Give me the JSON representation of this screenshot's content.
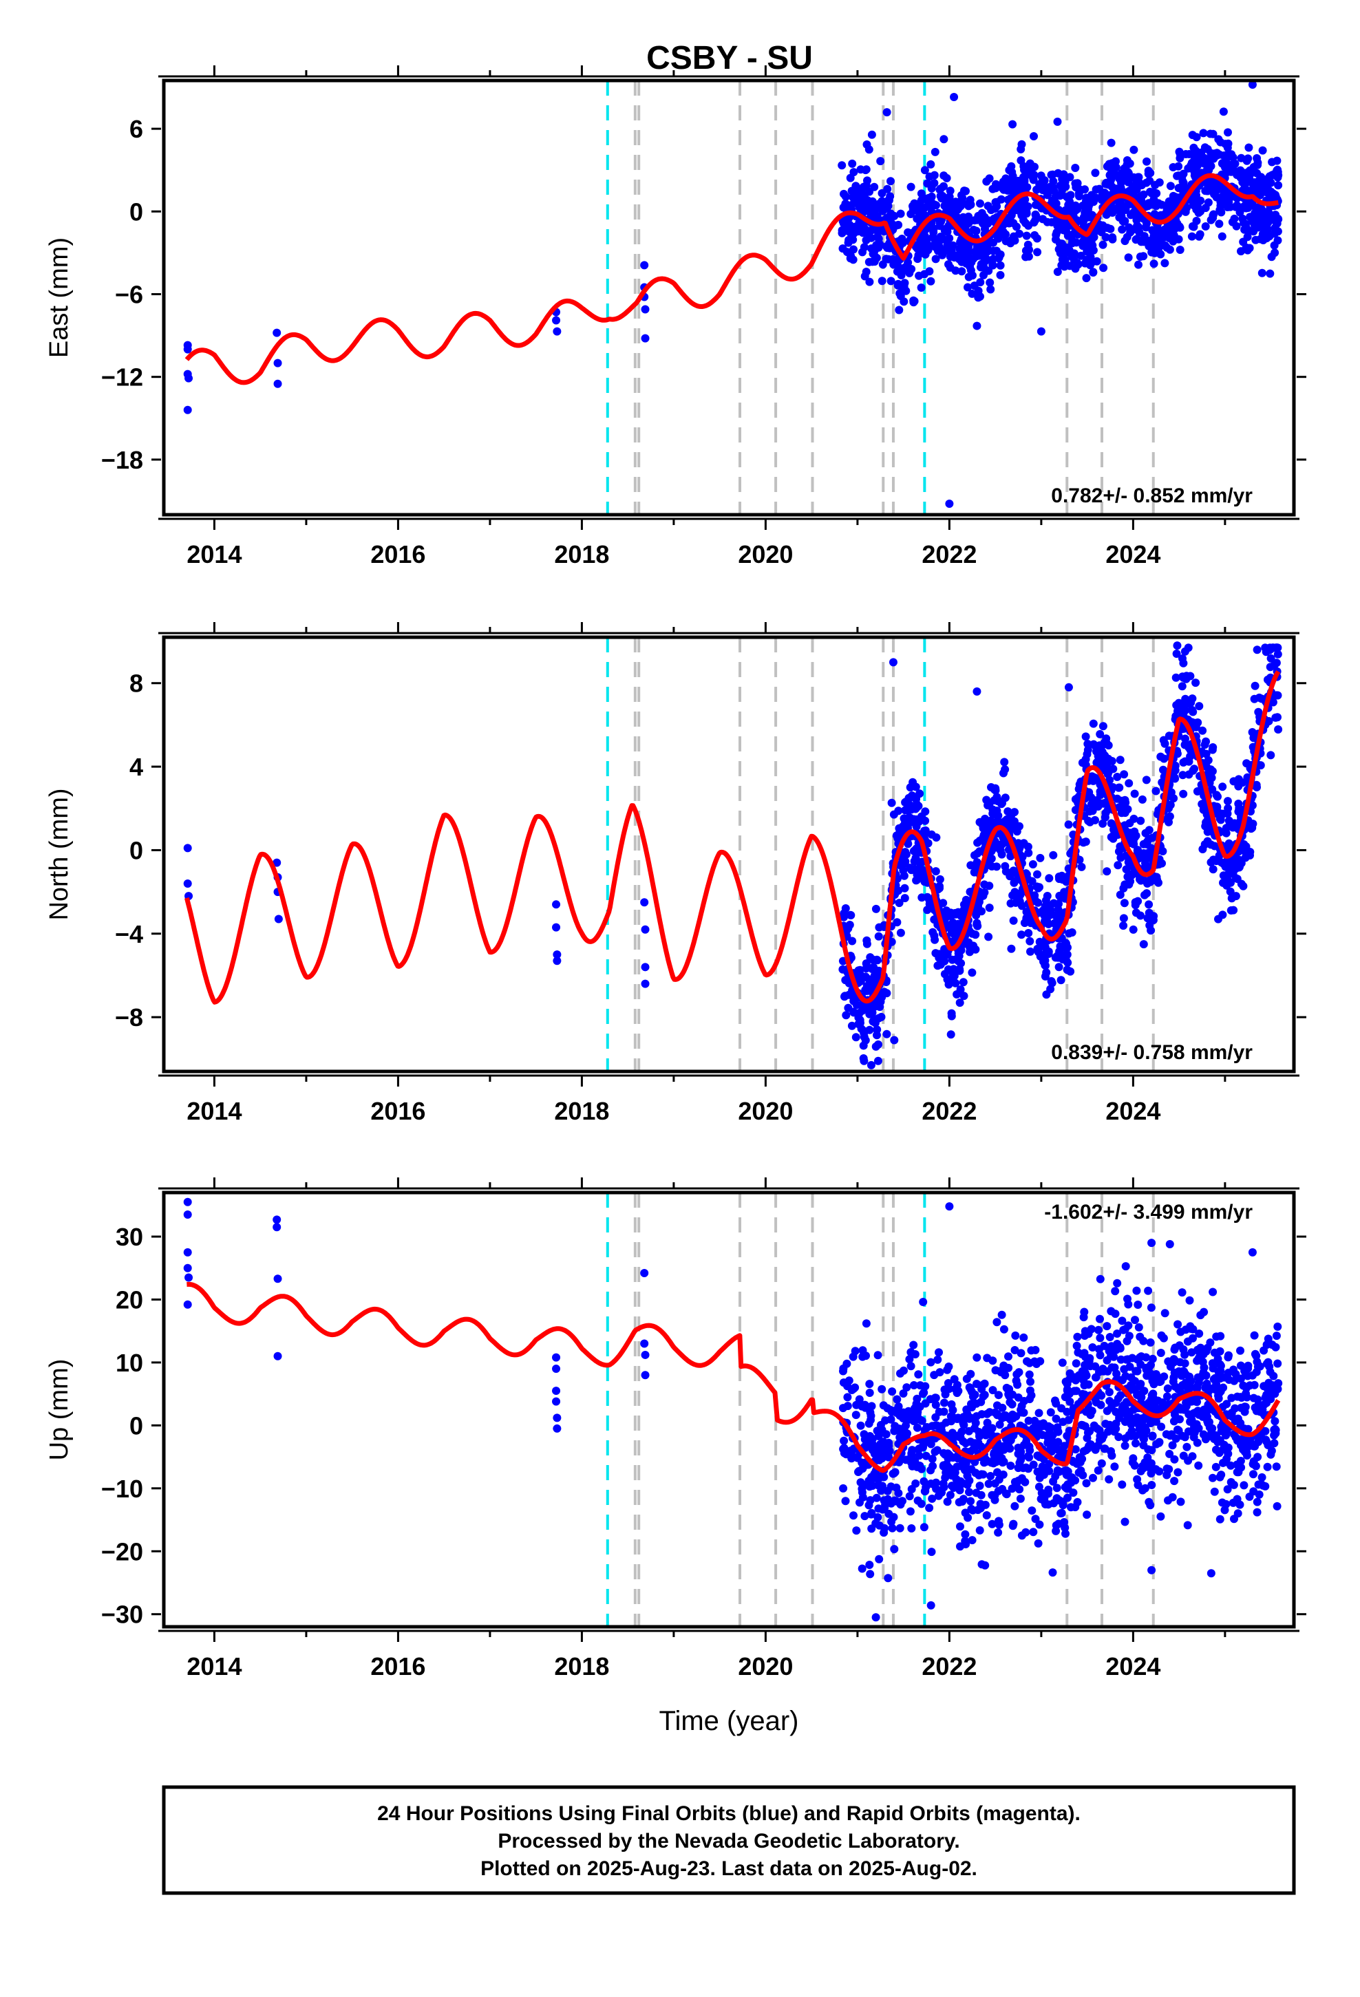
{
  "title": "CSBY - SU",
  "footer": {
    "line1": "24 Hour Positions Using Final Orbits (blue) and Rapid Orbits (magenta).",
    "line2": "Processed by the Nevada Geodetic Laboratory.",
    "line3": "Plotted on 2025-Aug-23. Last data on 2025-Aug-02."
  },
  "colors": {
    "data": "#0000ff",
    "model": "#ff0000",
    "event_cyan": "#00e5ee",
    "event_gray": "#c0c0c0"
  },
  "chart_data": [
    {
      "type": "scatter",
      "ylabel": "East (mm)",
      "xlabel": "",
      "xlim": [
        2013.45,
        2025.75
      ],
      "ylim": [
        -22,
        9.5
      ],
      "yticks": [
        6,
        0,
        -6,
        -12,
        -18
      ],
      "xticks": [
        2014,
        2016,
        2018,
        2020,
        2022,
        2024
      ],
      "rate_label": "0.782+/- 0.852 mm/yr",
      "rate_position": "bottom-right",
      "events_cyan": [
        2018.28,
        2021.73
      ],
      "events_gray": [
        2018.58,
        2018.62,
        2019.72,
        2020.11,
        2020.51,
        2021.28,
        2021.39,
        2023.28,
        2023.66,
        2024.22
      ],
      "early_points": [
        {
          "x": 2013.71,
          "y": -9.7
        },
        {
          "x": 2013.71,
          "y": -10.0
        },
        {
          "x": 2013.71,
          "y": -11.8
        },
        {
          "x": 2013.72,
          "y": -12.1
        },
        {
          "x": 2013.71,
          "y": -14.4
        },
        {
          "x": 2014.68,
          "y": -8.8
        },
        {
          "x": 2014.69,
          "y": -11.0
        },
        {
          "x": 2014.69,
          "y": -12.5
        },
        {
          "x": 2017.72,
          "y": -7.3
        },
        {
          "x": 2017.72,
          "y": -7.9
        },
        {
          "x": 2017.73,
          "y": -8.7
        },
        {
          "x": 2018.68,
          "y": -3.9
        },
        {
          "x": 2018.68,
          "y": -5.5
        },
        {
          "x": 2018.68,
          "y": -6.2
        },
        {
          "x": 2018.69,
          "y": -7.1
        },
        {
          "x": 2018.69,
          "y": -9.2
        }
      ],
      "dense": {
        "x_start": 2020.83,
        "x_end": 2025.58,
        "count": 1500,
        "seed": 11,
        "scatter_sd": 1.8,
        "outliers": [
          {
            "x": 2022.0,
            "y": -21.2
          },
          {
            "x": 2023.0,
            "y": -8.7
          },
          {
            "x": 2022.3,
            "y": -8.3
          },
          {
            "x": 2021.32,
            "y": 7.2
          },
          {
            "x": 2025.3,
            "y": 9.2
          },
          {
            "x": 2022.05,
            "y": 8.3
          }
        ]
      },
      "model": {
        "break_years": [
          2018.28,
          2018.58,
          2019.72,
          2020.11,
          2020.51,
          2021.28,
          2021.39,
          2023.28
        ],
        "break_offsets": [
          0.8,
          -0.6,
          0.9,
          0.6,
          -0.9,
          -0.6,
          -1.1,
          -1.2
        ],
        "curve": [
          [
            2013.7,
            -11.8
          ],
          [
            2014.0,
            -10.8
          ],
          [
            2014.5,
            -11.3
          ],
          [
            2015.0,
            -9.7
          ],
          [
            2015.5,
            -9.4
          ],
          [
            2016.0,
            -9.0
          ],
          [
            2016.5,
            -9.4
          ],
          [
            2017.0,
            -8.3
          ],
          [
            2017.5,
            -8.5
          ],
          [
            2018.0,
            -7.4
          ],
          [
            2018.3,
            -6.5
          ],
          [
            2018.6,
            -7.0
          ],
          [
            2019.0,
            -5.6
          ],
          [
            2019.5,
            -5.6
          ],
          [
            2020.0,
            -3.9
          ],
          [
            2020.5,
            -3.4
          ],
          [
            2021.0,
            -0.6
          ],
          [
            2021.3,
            0.5
          ],
          [
            2021.5,
            -3.0
          ],
          [
            2022.0,
            -0.9
          ],
          [
            2022.5,
            -0.8
          ],
          [
            2023.0,
            0.4
          ],
          [
            2023.3,
            0.9
          ],
          [
            2023.5,
            -1.3
          ],
          [
            2024.0,
            0.4
          ],
          [
            2024.5,
            0.6
          ],
          [
            2025.0,
            1.7
          ],
          [
            2025.3,
            2.4
          ],
          [
            2025.58,
            0.4
          ]
        ],
        "seasonal_amp": 1.3,
        "seasonal_phase": 0.55
      }
    },
    {
      "type": "scatter",
      "ylabel": "North (mm)",
      "xlabel": "",
      "xlim": [
        2013.45,
        2025.75
      ],
      "ylim": [
        -10.6,
        10.2
      ],
      "yticks": [
        8,
        4,
        0,
        -4,
        -8
      ],
      "xticks": [
        2014,
        2016,
        2018,
        2020,
        2022,
        2024
      ],
      "rate_label": "0.839+/- 0.758 mm/yr",
      "rate_position": "bottom-right",
      "events_cyan": [
        2018.28,
        2021.73
      ],
      "events_gray": [
        2018.58,
        2018.62,
        2019.72,
        2020.11,
        2020.51,
        2021.28,
        2021.39,
        2023.28,
        2023.66,
        2024.22
      ],
      "early_points": [
        {
          "x": 2013.71,
          "y": 0.1
        },
        {
          "x": 2013.71,
          "y": -1.6
        },
        {
          "x": 2013.72,
          "y": -2.2
        },
        {
          "x": 2014.68,
          "y": -0.6
        },
        {
          "x": 2014.69,
          "y": -1.3
        },
        {
          "x": 2014.69,
          "y": -2.0
        },
        {
          "x": 2014.7,
          "y": -3.3
        },
        {
          "x": 2017.72,
          "y": -2.6
        },
        {
          "x": 2017.72,
          "y": -3.7
        },
        {
          "x": 2017.73,
          "y": -5.0
        },
        {
          "x": 2017.73,
          "y": -5.3
        },
        {
          "x": 2018.68,
          "y": -2.5
        },
        {
          "x": 2018.69,
          "y": -3.8
        },
        {
          "x": 2018.69,
          "y": -5.6
        },
        {
          "x": 2018.69,
          "y": -6.4
        }
      ],
      "dense": {
        "x_start": 2020.83,
        "x_end": 2025.58,
        "count": 1500,
        "seed": 23,
        "scatter_sd": 1.4,
        "outliers": [
          {
            "x": 2021.39,
            "y": 9.0
          },
          {
            "x": 2022.3,
            "y": 7.6
          },
          {
            "x": 2023.3,
            "y": 7.8
          },
          {
            "x": 2024.48,
            "y": 9.8
          },
          {
            "x": 2025.35,
            "y": 9.6
          },
          {
            "x": 2021.4,
            "y": -9.1
          },
          {
            "x": 2021.15,
            "y": -10.3
          }
        ]
      },
      "model": {
        "curve": [
          [
            2013.7,
            -3.7
          ],
          [
            2014.0,
            -5.0
          ],
          [
            2014.5,
            -2.5
          ],
          [
            2015.0,
            -3.8
          ],
          [
            2015.5,
            -2.0
          ],
          [
            2016.0,
            -3.3
          ],
          [
            2016.5,
            -0.6
          ],
          [
            2017.0,
            -2.6
          ],
          [
            2017.5,
            -0.7
          ],
          [
            2018.0,
            -1.7
          ],
          [
            2018.3,
            -2.9
          ],
          [
            2018.55,
            -0.2
          ],
          [
            2019.0,
            -3.9
          ],
          [
            2019.5,
            -2.4
          ],
          [
            2020.0,
            -3.7
          ],
          [
            2020.5,
            -1.6
          ],
          [
            2020.9,
            -4.0
          ],
          [
            2021.28,
            -5.8
          ],
          [
            2021.4,
            -2.2
          ],
          [
            2021.7,
            -1.0
          ],
          [
            2022.0,
            -2.4
          ],
          [
            2022.5,
            -1.3
          ],
          [
            2023.0,
            -1.4
          ],
          [
            2023.28,
            -3.0
          ],
          [
            2023.5,
            1.5
          ],
          [
            2024.0,
            2.0
          ],
          [
            2024.22,
            0.2
          ],
          [
            2024.5,
            4.0
          ],
          [
            2025.0,
            2.0
          ],
          [
            2025.2,
            2.6
          ],
          [
            2025.58,
            6.2
          ]
        ],
        "seasonal_amp": 2.4,
        "seasonal_phase": 0.3
      }
    },
    {
      "type": "scatter",
      "ylabel": "Up (mm)",
      "xlabel": "Time (year)",
      "xlim": [
        2013.45,
        2025.75
      ],
      "ylim": [
        -32,
        37
      ],
      "yticks": [
        30,
        20,
        10,
        0,
        -10,
        -20,
        -30
      ],
      "xticks": [
        2014,
        2016,
        2018,
        2020,
        2022,
        2024
      ],
      "rate_label": "-1.602+/- 3.499 mm/yr",
      "rate_position": "top-right",
      "events_cyan": [
        2018.28,
        2021.73
      ],
      "events_gray": [
        2018.58,
        2018.62,
        2019.72,
        2020.11,
        2020.51,
        2021.28,
        2021.39,
        2023.28,
        2023.66,
        2024.22
      ],
      "early_points": [
        {
          "x": 2013.71,
          "y": 35.5
        },
        {
          "x": 2013.71,
          "y": 33.5
        },
        {
          "x": 2013.71,
          "y": 27.5
        },
        {
          "x": 2013.71,
          "y": 25.0
        },
        {
          "x": 2013.72,
          "y": 23.5
        },
        {
          "x": 2013.71,
          "y": 19.2
        },
        {
          "x": 2014.68,
          "y": 32.7
        },
        {
          "x": 2014.68,
          "y": 31.5
        },
        {
          "x": 2014.69,
          "y": 23.3
        },
        {
          "x": 2014.69,
          "y": 11.0
        },
        {
          "x": 2017.72,
          "y": 10.8
        },
        {
          "x": 2017.72,
          "y": 9.0
        },
        {
          "x": 2017.72,
          "y": 5.5
        },
        {
          "x": 2017.72,
          "y": 3.8
        },
        {
          "x": 2017.73,
          "y": 1.2
        },
        {
          "x": 2017.73,
          "y": -0.5
        },
        {
          "x": 2018.68,
          "y": 24.2
        },
        {
          "x": 2018.68,
          "y": 13.0
        },
        {
          "x": 2018.69,
          "y": 11.2
        },
        {
          "x": 2018.69,
          "y": 8.0
        }
      ],
      "dense": {
        "x_start": 2020.83,
        "x_end": 2025.58,
        "count": 1500,
        "seed": 37,
        "scatter_sd": 7.0,
        "outliers": [
          {
            "x": 2022.0,
            "y": 34.8
          },
          {
            "x": 2021.2,
            "y": -30.5
          },
          {
            "x": 2021.8,
            "y": -28.6
          },
          {
            "x": 2024.2,
            "y": 29.0
          },
          {
            "x": 2024.4,
            "y": 28.8
          },
          {
            "x": 2024.2,
            "y": -23.0
          },
          {
            "x": 2024.85,
            "y": -23.5
          },
          {
            "x": 2025.3,
            "y": 27.5
          }
        ]
      },
      "model": {
        "curve": [
          [
            2013.7,
            20.3
          ],
          [
            2014.0,
            17.9
          ],
          [
            2014.5,
            19.5
          ],
          [
            2015.0,
            16.6
          ],
          [
            2015.5,
            17.3
          ],
          [
            2016.0,
            14.7
          ],
          [
            2016.5,
            15.8
          ],
          [
            2017.0,
            13.0
          ],
          [
            2017.5,
            14.4
          ],
          [
            2018.0,
            11.4
          ],
          [
            2018.3,
            12.2
          ],
          [
            2018.58,
            14.6
          ],
          [
            2019.0,
            11.6
          ],
          [
            2019.5,
            12.5
          ],
          [
            2019.72,
            12.0
          ],
          [
            2019.73,
            7.0
          ],
          [
            2020.11,
            6.0
          ],
          [
            2020.12,
            2.0
          ],
          [
            2020.51,
            5.0
          ],
          [
            2020.52,
            2.5
          ],
          [
            2021.0,
            -4.0
          ],
          [
            2021.28,
            -4.6
          ],
          [
            2021.5,
            -2.2
          ],
          [
            2021.73,
            -4.0
          ],
          [
            2022.0,
            -3.7
          ],
          [
            2022.5,
            -1.5
          ],
          [
            2023.0,
            -4.8
          ],
          [
            2023.28,
            -3.5
          ],
          [
            2023.4,
            4.5
          ],
          [
            2023.66,
            5.0
          ],
          [
            2024.0,
            3.0
          ],
          [
            2024.5,
            5.0
          ],
          [
            2025.0,
            0.0
          ],
          [
            2025.3,
            1.2
          ],
          [
            2025.58,
            3.5
          ]
        ],
        "seasonal_amp": 2.6,
        "seasonal_phase": 0.55
      }
    }
  ]
}
